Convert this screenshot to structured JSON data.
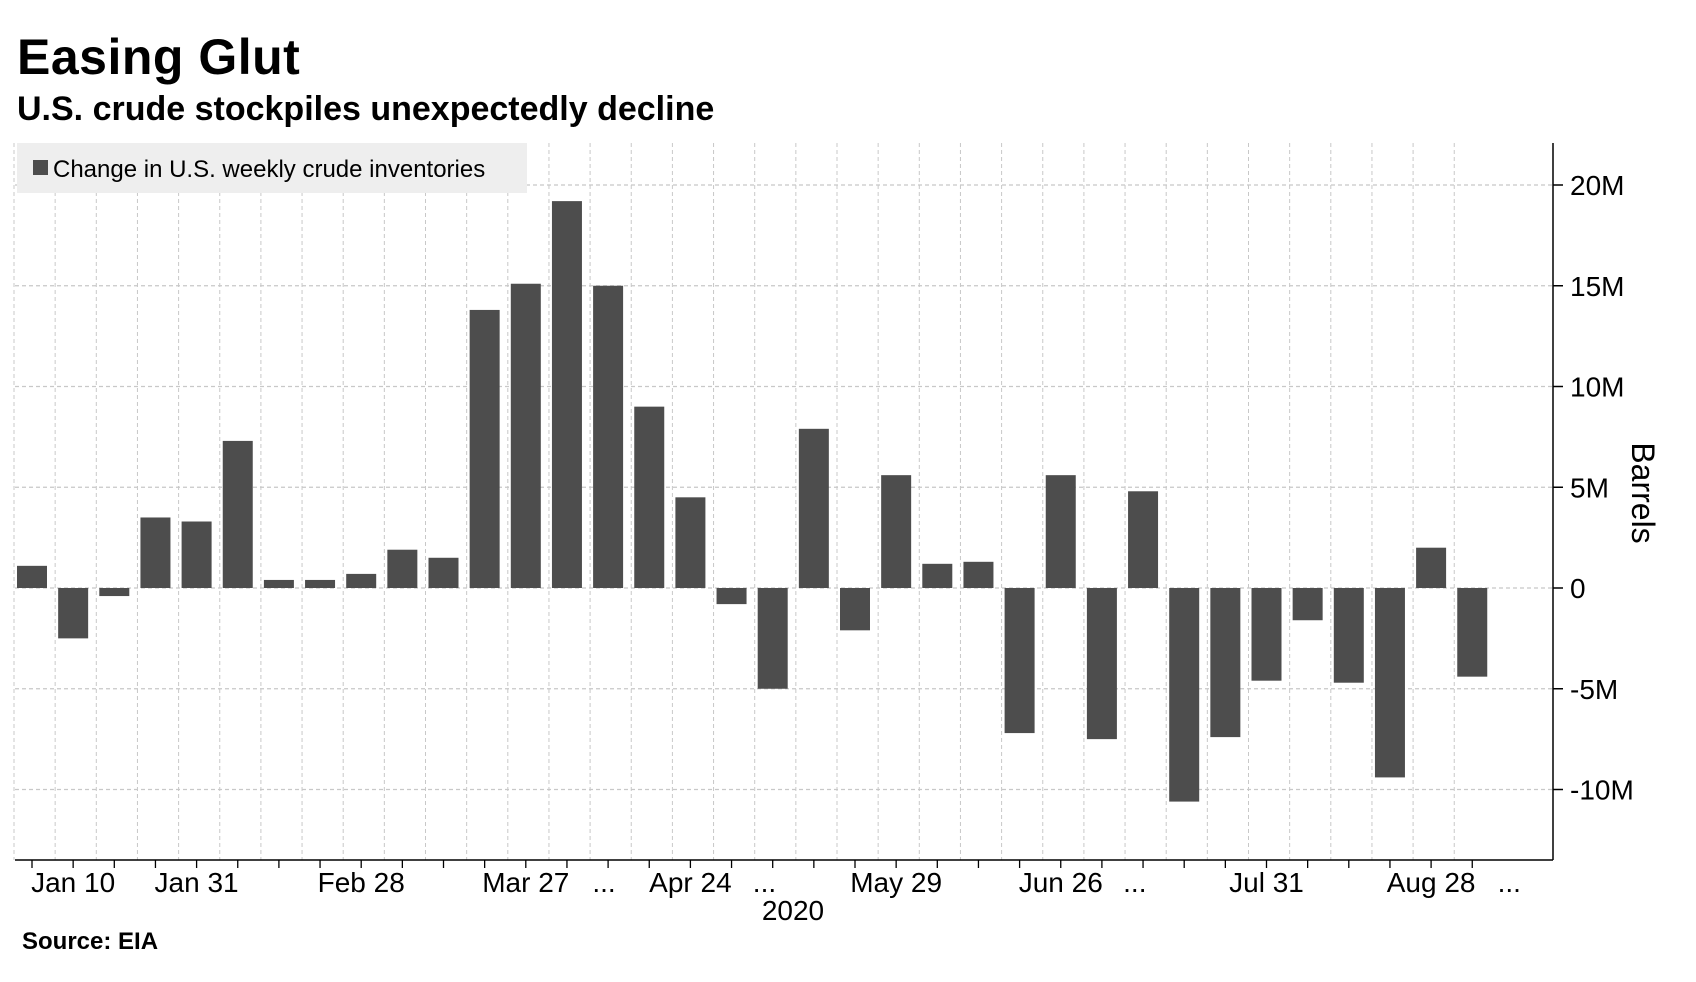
{
  "title": "Easing Glut",
  "subtitle": "U.S. crude stockpiles unexpectedly decline",
  "source": "Source: EIA",
  "colors": {
    "bar": "#4d4d4d",
    "grid": "#c8c8c8",
    "legend_bg": "#eeeeee",
    "axis": "#000000"
  },
  "chart_data": {
    "type": "bar",
    "ylabel": "Barrels",
    "ylim": [
      -13.5,
      22.5
    ],
    "y_ticks": [
      {
        "value": 20,
        "label": "20M"
      },
      {
        "value": 15,
        "label": "15M"
      },
      {
        "value": 10,
        "label": "10M"
      },
      {
        "value": 5,
        "label": "5M"
      },
      {
        "value": 0,
        "label": "0"
      },
      {
        "value": -5,
        "label": "-5M"
      },
      {
        "value": -10,
        "label": "-10M"
      }
    ],
    "x_tick_labels": [
      {
        "bar_index": 1,
        "label": "Jan 10"
      },
      {
        "bar_index": 4,
        "label": "Jan 31"
      },
      {
        "bar_index": 8,
        "label": "Feb 28"
      },
      {
        "bar_index": 12,
        "label": "Mar 27"
      },
      {
        "bar_index": 13.9,
        "label": "..."
      },
      {
        "bar_index": 16,
        "label": "Apr 24"
      },
      {
        "bar_index": 17.8,
        "label": "..."
      },
      {
        "bar_index": 21,
        "label": "May 29"
      },
      {
        "bar_index": 25,
        "label": "Jun 26"
      },
      {
        "bar_index": 26.8,
        "label": "..."
      },
      {
        "bar_index": 30,
        "label": "Jul 31"
      },
      {
        "bar_index": 34,
        "label": "Aug 28"
      },
      {
        "bar_index": 35.9,
        "label": "..."
      }
    ],
    "x_axis_year": "2020",
    "series": [
      {
        "name": "Change in U.S. weekly crude inventories",
        "values": [
          1.1,
          -2.5,
          -0.4,
          3.5,
          3.3,
          7.3,
          0.4,
          0.4,
          0.7,
          1.9,
          1.5,
          13.8,
          15.1,
          19.2,
          15.0,
          9.0,
          4.5,
          -0.8,
          -5.0,
          7.9,
          -2.1,
          5.6,
          1.2,
          1.3,
          -7.2,
          5.6,
          -7.5,
          4.8,
          -10.6,
          -7.4,
          -4.6,
          -1.6,
          -4.7,
          -9.4,
          2.0,
          -4.4
        ]
      }
    ]
  }
}
